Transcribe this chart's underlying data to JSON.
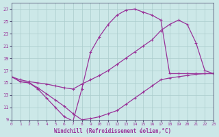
{
  "background_color": "#cce8e8",
  "grid_color": "#aacccc",
  "line_color": "#993399",
  "xlabel": "Windchill (Refroidissement éolien,°C)",
  "xlim": [
    0,
    23
  ],
  "ylim": [
    9,
    28
  ],
  "xticks": [
    0,
    1,
    2,
    3,
    4,
    5,
    6,
    7,
    8,
    9,
    10,
    11,
    12,
    13,
    14,
    15,
    16,
    17,
    18,
    19,
    20,
    21,
    22,
    23
  ],
  "yticks": [
    9,
    11,
    13,
    15,
    17,
    19,
    21,
    23,
    25,
    27
  ],
  "line_top_x": [
    0,
    1,
    2,
    3,
    4,
    5,
    6,
    7,
    8,
    9,
    10,
    11,
    12,
    13,
    14,
    15,
    16,
    17,
    18,
    19,
    20,
    21,
    22,
    23
  ],
  "line_top_y": [
    16,
    15.2,
    15.0,
    14.0,
    12.5,
    11.0,
    9.5,
    8.8,
    14.0,
    20.0,
    22.5,
    24.5,
    26.0,
    26.8,
    27.0,
    26.5,
    26.0,
    25.2,
    16.5,
    16.5,
    16.5,
    16.5,
    16.5,
    16.5
  ],
  "line_mid_x": [
    0,
    1,
    2,
    3,
    4,
    5,
    6,
    7,
    8,
    9,
    10,
    11,
    12,
    13,
    14,
    15,
    16,
    17,
    18,
    19,
    20,
    21,
    22,
    23
  ],
  "line_mid_y": [
    16,
    15.5,
    15.2,
    15.0,
    14.8,
    14.5,
    14.2,
    14.0,
    14.8,
    15.5,
    16.2,
    17.0,
    18.0,
    19.0,
    20.0,
    21.0,
    22.0,
    23.5,
    24.5,
    25.2,
    24.5,
    21.5,
    17.0,
    16.5
  ],
  "line_bot_x": [
    0,
    1,
    2,
    3,
    4,
    5,
    6,
    7,
    8,
    9,
    10,
    11,
    12,
    13,
    14,
    15,
    16,
    17,
    18,
    19,
    20,
    21,
    22,
    23
  ],
  "line_bot_y": [
    16,
    15.2,
    15.0,
    14.2,
    13.2,
    12.2,
    11.2,
    10.0,
    9.0,
    9.2,
    9.5,
    10.0,
    10.5,
    11.5,
    12.5,
    13.5,
    14.5,
    15.5,
    15.8,
    16.0,
    16.2,
    16.4,
    16.5,
    16.5
  ]
}
